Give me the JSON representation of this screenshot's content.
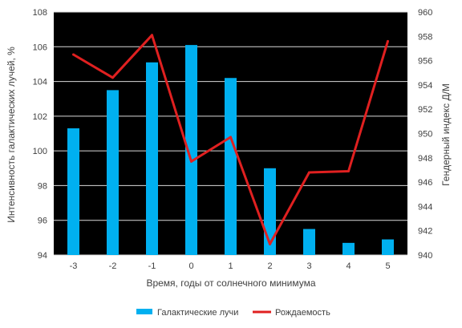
{
  "chart_data": {
    "type": "bar",
    "categories": [
      "-3",
      "-2",
      "-1",
      "0",
      "1",
      "2",
      "3",
      "4",
      "5"
    ],
    "series": [
      {
        "name": "Галактические лучи",
        "kind": "bar",
        "axis": "left",
        "color": "#00b0f0",
        "values": [
          101.3,
          103.5,
          105.1,
          106.1,
          104.2,
          99.0,
          95.5,
          94.7,
          94.9
        ]
      },
      {
        "name": "Рождаемость",
        "kind": "line",
        "axis": "right",
        "color": "#e02020",
        "values": [
          956.5,
          954.6,
          958.1,
          947.7,
          949.7,
          940.9,
          946.8,
          946.9,
          957.6
        ]
      }
    ],
    "xlabel": "Время, годы от солнечного минимума",
    "ylabel": "Интенсивность галактических лучей, %",
    "y2label": "Гендерный индекс Д/М",
    "ylim": [
      94,
      108
    ],
    "y2lim": [
      940,
      960
    ],
    "yticks": [
      "94",
      "96",
      "98",
      "100",
      "102",
      "104",
      "106",
      "108"
    ],
    "y2ticks": [
      "940",
      "942",
      "944",
      "946",
      "948",
      "950",
      "952",
      "954",
      "956",
      "958",
      "960"
    ],
    "plot_background": "#000000",
    "grid": true,
    "legend": "bottom"
  }
}
